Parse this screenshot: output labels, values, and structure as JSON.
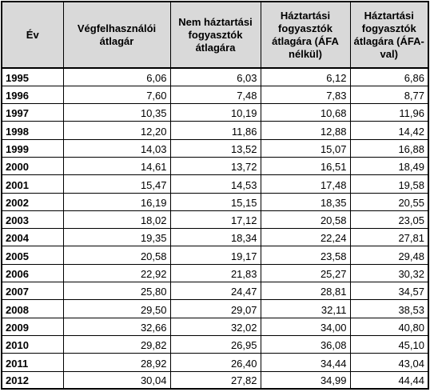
{
  "table": {
    "header": [
      "Év",
      "Végfelhasználói átlagár",
      "Nem háztartási fogyasztók átlagára",
      "Háztartási fogyasztók átlagára (ÁFA nélkül)",
      "Háztartási fogyasztók átlagára (ÁFA-val)"
    ],
    "rows": [
      [
        "1995",
        "6,06",
        "6,03",
        "6,12",
        "6,86"
      ],
      [
        "1996",
        "7,60",
        "7,48",
        "7,83",
        "8,77"
      ],
      [
        "1997",
        "10,35",
        "10,19",
        "10,68",
        "11,96"
      ],
      [
        "1998",
        "12,20",
        "11,86",
        "12,88",
        "14,42"
      ],
      [
        "1999",
        "14,03",
        "13,52",
        "15,07",
        "16,88"
      ],
      [
        "2000",
        "14,61",
        "13,72",
        "16,51",
        "18,49"
      ],
      [
        "2001",
        "15,47",
        "14,53",
        "17,48",
        "19,58"
      ],
      [
        "2002",
        "16,19",
        "15,15",
        "18,35",
        "20,55"
      ],
      [
        "2003",
        "18,02",
        "17,12",
        "20,58",
        "23,05"
      ],
      [
        "2004",
        "19,35",
        "18,34",
        "22,24",
        "27,81"
      ],
      [
        "2005",
        "20,58",
        "19,17",
        "23,58",
        "29,48"
      ],
      [
        "2006",
        "22,92",
        "21,83",
        "25,27",
        "30,32"
      ],
      [
        "2007",
        "25,80",
        "24,47",
        "28,81",
        "34,57"
      ],
      [
        "2008",
        "29,50",
        "29,07",
        "32,11",
        "38,53"
      ],
      [
        "2009",
        "32,66",
        "32,02",
        "34,00",
        "40,80"
      ],
      [
        "2010",
        "29,82",
        "26,95",
        "36,08",
        "45,10"
      ],
      [
        "2011",
        "28,92",
        "26,40",
        "34,44",
        "43,04"
      ],
      [
        "2012",
        "30,04",
        "27,82",
        "34,99",
        "44,44"
      ]
    ]
  }
}
